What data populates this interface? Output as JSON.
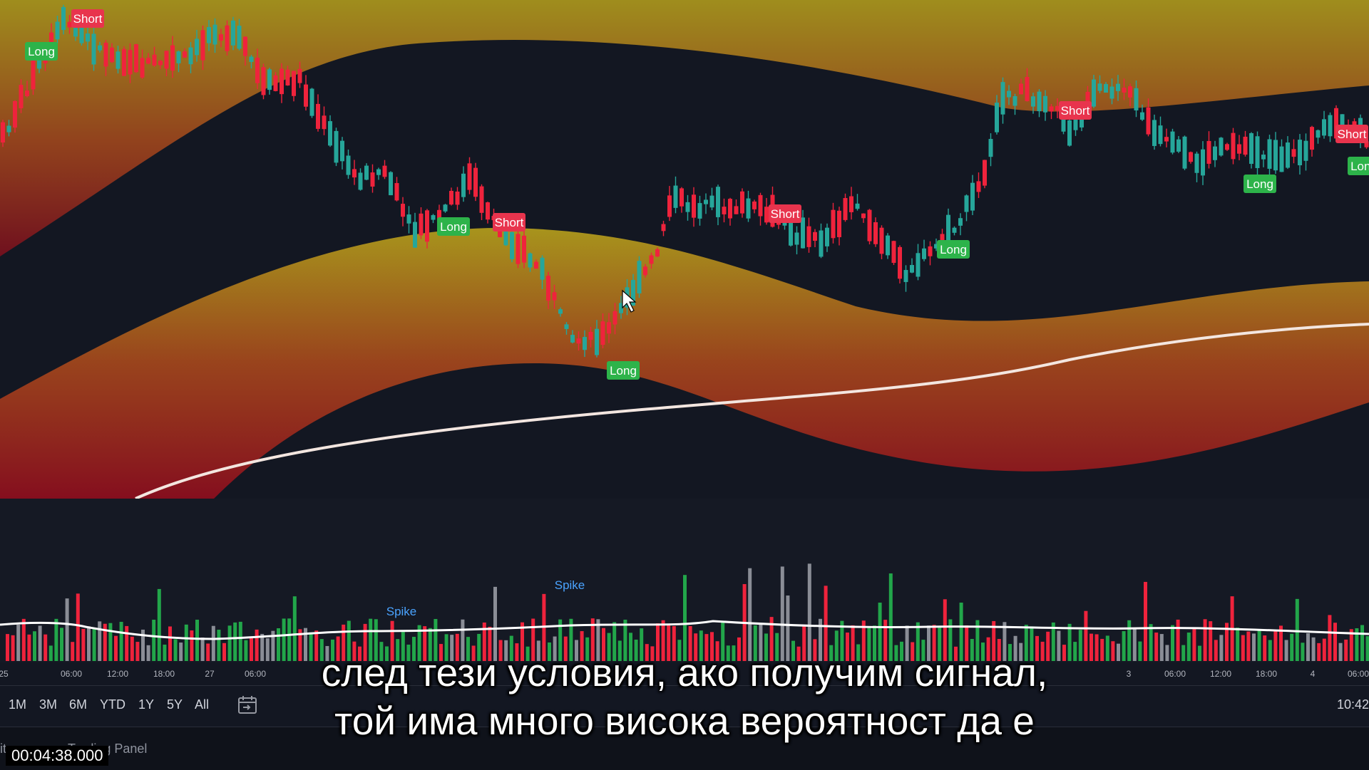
{
  "chart": {
    "signals": [
      {
        "type": "short",
        "label": "Short"
      },
      {
        "type": "long",
        "label": "Long"
      },
      {
        "type": "long",
        "label": "Long"
      },
      {
        "type": "short",
        "label": "Short"
      },
      {
        "type": "long",
        "label": "Long"
      },
      {
        "type": "short",
        "label": "Short"
      },
      {
        "type": "long",
        "label": "Long"
      },
      {
        "type": "short",
        "label": "Short"
      },
      {
        "type": "long",
        "label": "Long"
      },
      {
        "type": "short",
        "label": "Short"
      },
      {
        "type": "long",
        "label": "Long"
      }
    ],
    "volume_markers": [
      {
        "label": "Spike"
      },
      {
        "label": "Spike"
      }
    ],
    "colors": {
      "background": "#131722",
      "candle_up": "#26a69a",
      "candle_down": "#ef233c",
      "band_outer": "#8b0e1e",
      "band_inner": "#b8a21c",
      "long_signal": "#2db34a",
      "short_signal": "#e8344d",
      "moving_average": "#ffffff",
      "spike_label": "#4aa3ff"
    }
  },
  "time_axis": {
    "ticks": [
      "25",
      "06:00",
      "12:00",
      "18:00",
      "27",
      "06:00",
      "3",
      "06:00",
      "12:00",
      "18:00",
      "4",
      "06:00"
    ]
  },
  "range_bar": {
    "buttons": [
      "1M",
      "3M",
      "6M",
      "YTD",
      "1Y",
      "5Y",
      "All"
    ],
    "clock": "10:42"
  },
  "bottom_panel": {
    "tabs": [
      "itor",
      "Trading Panel"
    ]
  },
  "subtitle": {
    "line1": "след тези условия, ако получим сигнал,",
    "line2": "той има много висока вероятност да е"
  },
  "video": {
    "timecode": "00:04:38.000"
  }
}
